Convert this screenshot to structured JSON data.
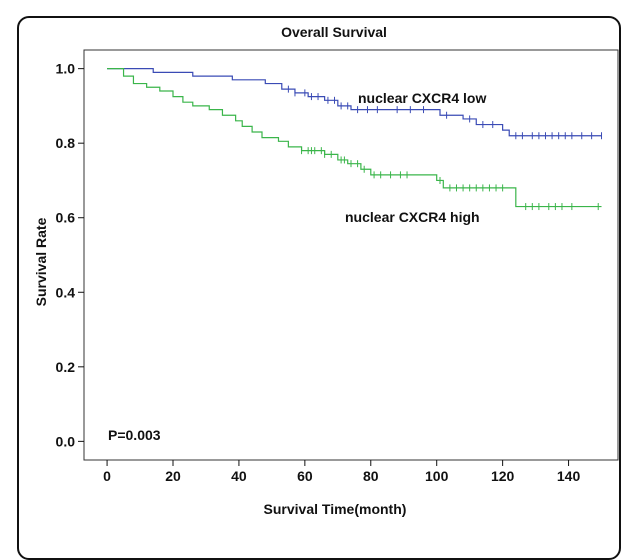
{
  "chart_data": {
    "type": "line",
    "title": "Overall Survival",
    "xlabel": "Survival Time(month)",
    "ylabel": "Survival Rate",
    "xlim": [
      -7,
      155
    ],
    "ylim": [
      -0.05,
      1.05
    ],
    "x_ticks": [
      0,
      20,
      40,
      60,
      80,
      100,
      120,
      140
    ],
    "y_ticks": [
      0.0,
      0.2,
      0.4,
      0.6,
      0.8,
      1.0
    ],
    "x_tick_labels": [
      "0",
      "20",
      "40",
      "60",
      "80",
      "100",
      "120",
      "140"
    ],
    "y_tick_labels": [
      "0.0",
      "0.2",
      "0.4",
      "0.6",
      "0.8",
      "1.0"
    ],
    "grid": false,
    "annotation": "P=0.003",
    "series": [
      {
        "name": "nuclear CXCR4 low",
        "color": "#3a4bb5",
        "step": [
          [
            0,
            1.0
          ],
          [
            14,
            0.99
          ],
          [
            26,
            0.98
          ],
          [
            38,
            0.97
          ],
          [
            48,
            0.96
          ],
          [
            53,
            0.945
          ],
          [
            57,
            0.935
          ],
          [
            61,
            0.925
          ],
          [
            66,
            0.915
          ],
          [
            70,
            0.9
          ],
          [
            74,
            0.89
          ],
          [
            101,
            0.875
          ],
          [
            108,
            0.865
          ],
          [
            112,
            0.85
          ],
          [
            120,
            0.835
          ],
          [
            122,
            0.82
          ],
          [
            150,
            0.82
          ]
        ],
        "censored": [
          [
            55,
            0.945
          ],
          [
            57,
            0.935
          ],
          [
            60,
            0.935
          ],
          [
            62,
            0.925
          ],
          [
            64,
            0.925
          ],
          [
            67,
            0.915
          ],
          [
            69,
            0.915
          ],
          [
            71,
            0.9
          ],
          [
            73,
            0.9
          ],
          [
            76,
            0.89
          ],
          [
            79,
            0.89
          ],
          [
            82,
            0.89
          ],
          [
            88,
            0.89
          ],
          [
            92,
            0.89
          ],
          [
            96,
            0.89
          ],
          [
            103,
            0.875
          ],
          [
            110,
            0.865
          ],
          [
            114,
            0.85
          ],
          [
            117,
            0.85
          ],
          [
            124,
            0.82
          ],
          [
            126,
            0.82
          ],
          [
            129,
            0.82
          ],
          [
            131,
            0.82
          ],
          [
            133,
            0.82
          ],
          [
            135,
            0.82
          ],
          [
            137,
            0.82
          ],
          [
            139,
            0.82
          ],
          [
            141,
            0.82
          ],
          [
            144,
            0.82
          ],
          [
            147,
            0.82
          ],
          [
            150,
            0.82
          ]
        ]
      },
      {
        "name": "nuclear CXCR4 high",
        "color": "#3ab54a",
        "step": [
          [
            0,
            1.0
          ],
          [
            5,
            0.98
          ],
          [
            8,
            0.96
          ],
          [
            12,
            0.95
          ],
          [
            16,
            0.94
          ],
          [
            20,
            0.925
          ],
          [
            23,
            0.91
          ],
          [
            26,
            0.9
          ],
          [
            31,
            0.89
          ],
          [
            35,
            0.875
          ],
          [
            39,
            0.86
          ],
          [
            41,
            0.845
          ],
          [
            44,
            0.83
          ],
          [
            47,
            0.815
          ],
          [
            52,
            0.805
          ],
          [
            55,
            0.79
          ],
          [
            59,
            0.78
          ],
          [
            66,
            0.77
          ],
          [
            70,
            0.755
          ],
          [
            73,
            0.745
          ],
          [
            77,
            0.73
          ],
          [
            80,
            0.715
          ],
          [
            100,
            0.7
          ],
          [
            102,
            0.68
          ],
          [
            124,
            0.63
          ],
          [
            150,
            0.63
          ]
        ],
        "censored": [
          [
            59,
            0.78
          ],
          [
            61,
            0.78
          ],
          [
            62,
            0.78
          ],
          [
            63,
            0.78
          ],
          [
            65,
            0.78
          ],
          [
            66,
            0.77
          ],
          [
            68,
            0.77
          ],
          [
            71,
            0.755
          ],
          [
            72,
            0.755
          ],
          [
            74,
            0.745
          ],
          [
            76,
            0.745
          ],
          [
            78,
            0.73
          ],
          [
            81,
            0.715
          ],
          [
            83,
            0.715
          ],
          [
            86,
            0.715
          ],
          [
            89,
            0.715
          ],
          [
            91,
            0.715
          ],
          [
            101,
            0.7
          ],
          [
            104,
            0.68
          ],
          [
            106,
            0.68
          ],
          [
            108,
            0.68
          ],
          [
            110,
            0.68
          ],
          [
            112,
            0.68
          ],
          [
            114,
            0.68
          ],
          [
            116,
            0.68
          ],
          [
            118,
            0.68
          ],
          [
            120,
            0.68
          ],
          [
            127,
            0.63
          ],
          [
            129,
            0.63
          ],
          [
            131,
            0.63
          ],
          [
            134,
            0.63
          ],
          [
            136,
            0.63
          ],
          [
            138,
            0.63
          ],
          [
            141,
            0.63
          ],
          [
            149,
            0.63
          ]
        ]
      }
    ]
  }
}
